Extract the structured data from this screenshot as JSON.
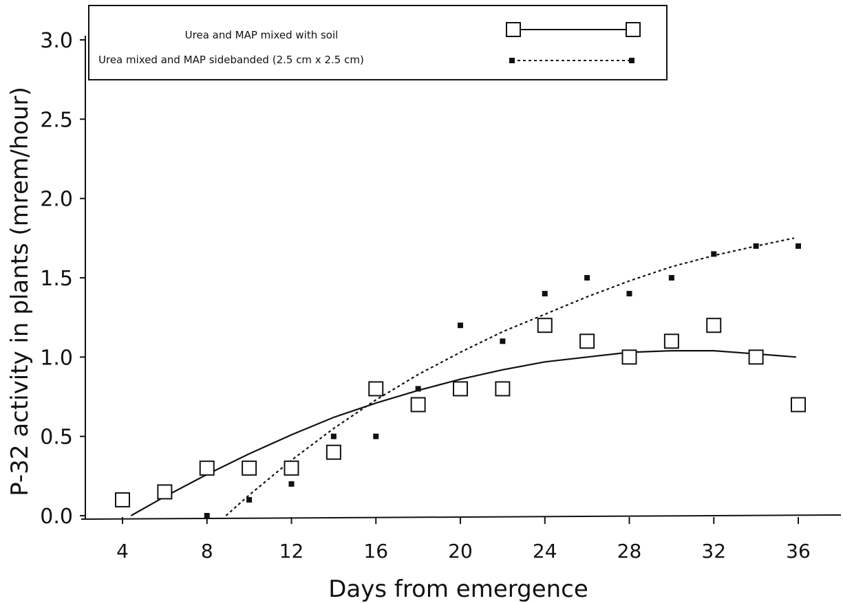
{
  "chart_data": {
    "type": "scatter",
    "xlabel": "Days from emergence",
    "ylabel": "P-32 activity in plants (mrem/hour)",
    "xlim": [
      2,
      40
    ],
    "ylim": [
      0,
      3.0
    ],
    "x_ticks": [
      4,
      8,
      12,
      16,
      20,
      24,
      28,
      32,
      36
    ],
    "y_ticks": [
      "0.0",
      "0.5",
      "1.0",
      "1.5",
      "2.0",
      "2.5",
      "3.0"
    ],
    "grid": false,
    "legend_position": "top-left",
    "series": [
      {
        "name": "Urea and MAP mixed with soil",
        "marker": "open-square",
        "line": "solid",
        "color": "#111111",
        "x": [
          4,
          6,
          8,
          10,
          12,
          14,
          16,
          18,
          20,
          22,
          24,
          26,
          28,
          30,
          32,
          34,
          36
        ],
        "y": [
          0.1,
          0.15,
          0.3,
          0.3,
          0.3,
          0.4,
          0.8,
          0.7,
          0.8,
          0.8,
          1.2,
          1.1,
          1.0,
          1.1,
          1.2,
          1.0,
          0.7
        ],
        "fit_x": [
          4.4,
          6,
          8,
          10,
          12,
          14,
          16,
          18,
          20,
          22,
          24,
          26,
          28,
          30,
          32,
          34,
          35.9
        ],
        "fit_y": [
          0.0,
          0.12,
          0.26,
          0.39,
          0.51,
          0.62,
          0.71,
          0.79,
          0.86,
          0.92,
          0.97,
          1.0,
          1.03,
          1.04,
          1.04,
          1.02,
          1.0
        ]
      },
      {
        "name": "Urea mixed and MAP sidebanded (2.5 cm x 2.5 cm)",
        "marker": "filled-square",
        "line": "dotted",
        "color": "#111111",
        "x": [
          8,
          10,
          12,
          14,
          16,
          18,
          20,
          22,
          24,
          26,
          28,
          30,
          32,
          34,
          36
        ],
        "y": [
          0.0,
          0.1,
          0.2,
          0.5,
          0.5,
          0.8,
          1.2,
          1.1,
          1.4,
          1.5,
          1.4,
          1.5,
          1.65,
          1.7,
          1.7
        ],
        "fit_x": [
          8.9,
          10,
          12,
          14,
          16,
          18,
          20,
          22,
          24,
          26,
          28,
          30,
          32,
          34,
          35.8
        ],
        "fit_y": [
          0.0,
          0.13,
          0.35,
          0.55,
          0.73,
          0.89,
          1.03,
          1.16,
          1.27,
          1.38,
          1.48,
          1.57,
          1.64,
          1.7,
          1.75
        ]
      }
    ]
  }
}
